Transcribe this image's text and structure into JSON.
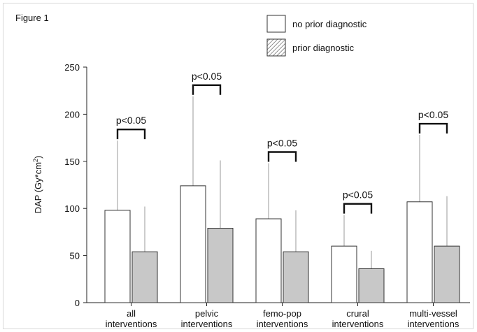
{
  "figure_label": "Figure 1",
  "chart_data": {
    "type": "bar",
    "title": "",
    "xlabel": "",
    "ylabel": "DAP (Gy*cm²)",
    "ylabel_main": "DAP (Gy*cm",
    "ylabel_sup": "2",
    "ylabel_close": ")",
    "ylim": [
      0,
      250
    ],
    "yticks": [
      0,
      50,
      100,
      150,
      200,
      250
    ],
    "grid": false,
    "legend_position": "top-center",
    "categories": [
      [
        "all",
        "interventions"
      ],
      [
        "pelvic",
        "interventions"
      ],
      [
        "femo-pop",
        "interventions"
      ],
      [
        "crural",
        "interventions"
      ],
      [
        "multi-vessel",
        "interventions"
      ]
    ],
    "series": [
      {
        "name": "no prior diagnostic",
        "fill": "#ffffff",
        "pattern": "none",
        "values": [
          98,
          124,
          89,
          60,
          107
        ],
        "error_upper": [
          172,
          219,
          148,
          93,
          178
        ]
      },
      {
        "name": "prior diagnostic",
        "fill": "#c8c8c8",
        "pattern": "hatched",
        "values": [
          54,
          79,
          54,
          36,
          60
        ],
        "error_upper": [
          102,
          151,
          98,
          55,
          113
        ]
      }
    ],
    "annotations": [
      {
        "text": "p<0.05",
        "category_index": 0
      },
      {
        "text": "p<0.05",
        "category_index": 1
      },
      {
        "text": "p<0.05",
        "category_index": 2
      },
      {
        "text": "p<0.05",
        "category_index": 3
      },
      {
        "text": "p<0.05",
        "category_index": 4
      }
    ]
  }
}
